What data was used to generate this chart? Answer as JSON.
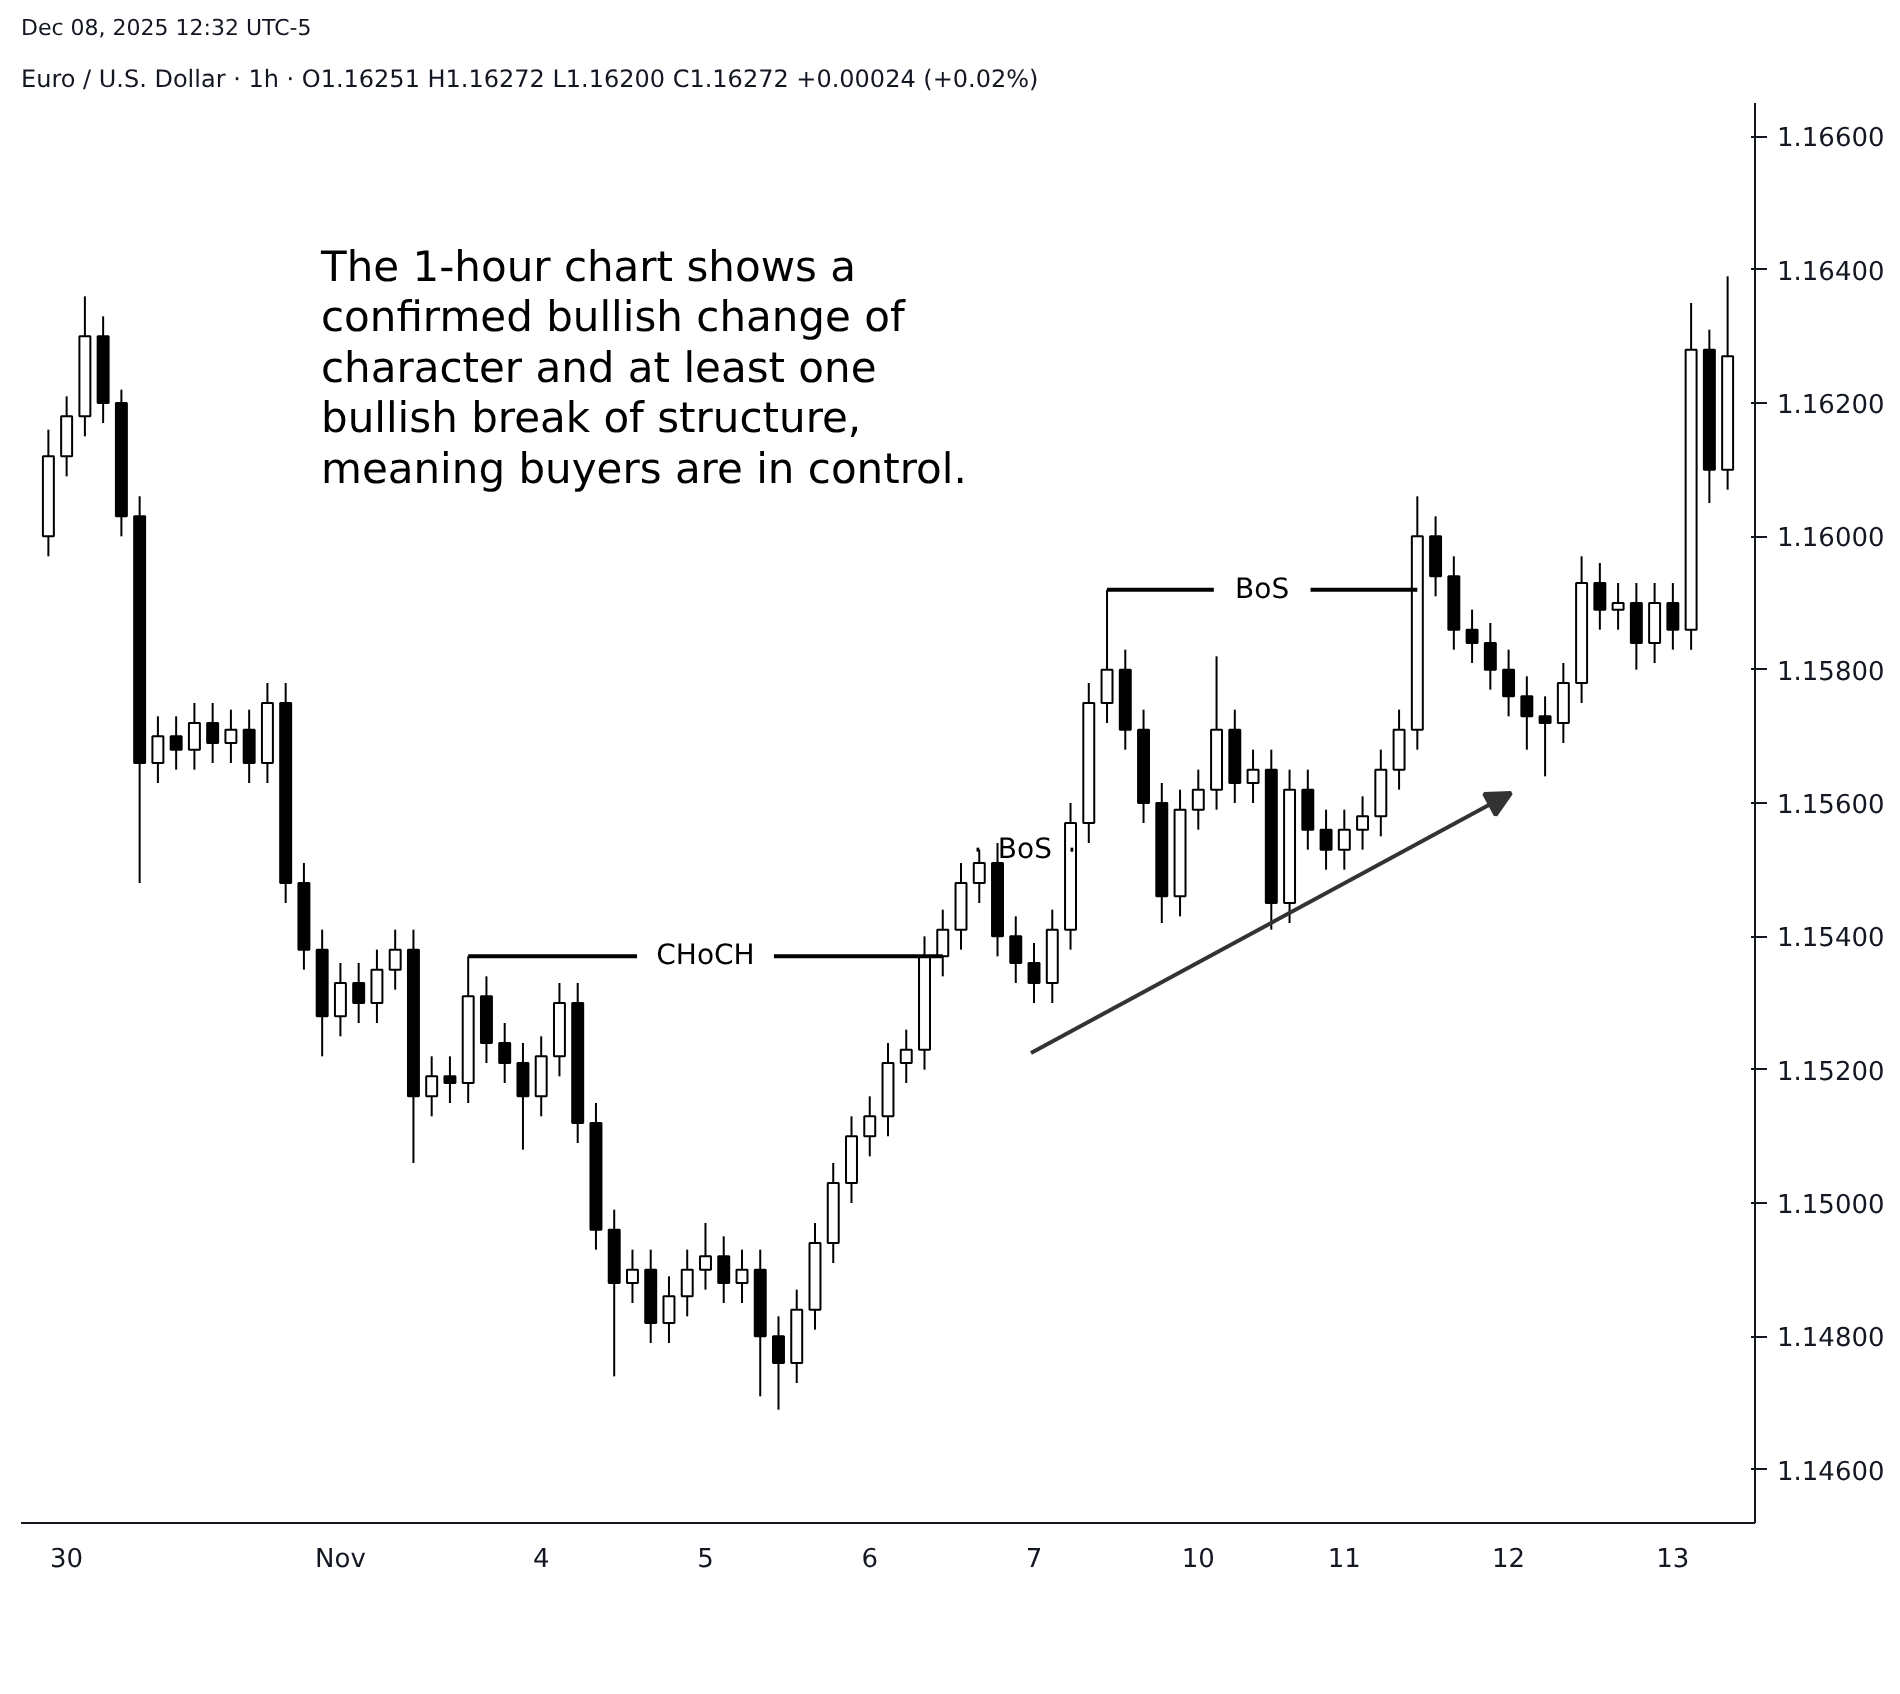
{
  "chart_data": {
    "type": "candlestick",
    "subtitle": "Dec 08, 2025 12:32 UTC-5",
    "title": "Euro / U.S. Dollar · 1h · O1.16251 H1.16272 L1.16200 C1.16272 +0.00024 (+0.02%)",
    "categories": [
      null,
      "30",
      null,
      null,
      null,
      null,
      null,
      null,
      null,
      null,
      null,
      null,
      null,
      null,
      null,
      null,
      "Nov",
      null,
      null,
      null,
      null,
      null,
      null,
      null,
      null,
      null,
      null,
      "4",
      null,
      null,
      null,
      null,
      null,
      null,
      null,
      null,
      "5",
      null,
      null,
      null,
      null,
      null,
      null,
      null,
      null,
      "6",
      null,
      null,
      null,
      null,
      null,
      null,
      null,
      null,
      "7",
      null,
      null,
      null,
      null,
      null,
      null,
      null,
      null,
      "10",
      null,
      null,
      null,
      null,
      null,
      null,
      null,
      "11",
      null,
      null,
      null,
      null,
      null,
      null,
      null,
      null,
      "12",
      null,
      null,
      null,
      null,
      null,
      null,
      null,
      null,
      "13",
      null,
      null,
      null
    ],
    "ohlc": [
      [
        1.16,
        1.1616,
        1.1597,
        1.1612
      ],
      [
        1.1612,
        1.1621,
        1.1609,
        1.1618
      ],
      [
        1.1618,
        1.1636,
        1.1615,
        1.163
      ],
      [
        1.163,
        1.1633,
        1.1617,
        1.162
      ],
      [
        1.162,
        1.1622,
        1.16,
        1.1603
      ],
      [
        1.1603,
        1.1606,
        1.1548,
        1.1566
      ],
      [
        1.1566,
        1.1573,
        1.1563,
        1.157
      ],
      [
        1.157,
        1.1573,
        1.1565,
        1.1568
      ],
      [
        1.1568,
        1.1575,
        1.1565,
        1.1572
      ],
      [
        1.1572,
        1.1575,
        1.1566,
        1.1569
      ],
      [
        1.1569,
        1.1574,
        1.1566,
        1.1571
      ],
      [
        1.1571,
        1.1574,
        1.1563,
        1.1566
      ],
      [
        1.1566,
        1.1578,
        1.1563,
        1.1575
      ],
      [
        1.1575,
        1.1578,
        1.1545,
        1.1548
      ],
      [
        1.1548,
        1.1551,
        1.1535,
        1.1538
      ],
      [
        1.1538,
        1.1541,
        1.1522,
        1.1528
      ],
      [
        1.1528,
        1.1536,
        1.1525,
        1.1533
      ],
      [
        1.1533,
        1.1536,
        1.1527,
        1.153
      ],
      [
        1.153,
        1.1538,
        1.1527,
        1.1535
      ],
      [
        1.1535,
        1.1541,
        1.1532,
        1.1538
      ],
      [
        1.1538,
        1.1541,
        1.1506,
        1.1516
      ],
      [
        1.1516,
        1.1522,
        1.1513,
        1.1519
      ],
      [
        1.1519,
        1.1522,
        1.1515,
        1.1518
      ],
      [
        1.1518,
        1.1537,
        1.1515,
        1.1531
      ],
      [
        1.1531,
        1.1534,
        1.1521,
        1.1524
      ],
      [
        1.1524,
        1.1527,
        1.1518,
        1.1521
      ],
      [
        1.1521,
        1.1524,
        1.1508,
        1.1516
      ],
      [
        1.1516,
        1.1525,
        1.1513,
        1.1522
      ],
      [
        1.1522,
        1.1533,
        1.1519,
        1.153
      ],
      [
        1.153,
        1.1533,
        1.1509,
        1.1512
      ],
      [
        1.1512,
        1.1515,
        1.1493,
        1.1496
      ],
      [
        1.1496,
        1.1499,
        1.1474,
        1.1488
      ],
      [
        1.1488,
        1.1493,
        1.1485,
        1.149
      ],
      [
        1.149,
        1.1493,
        1.1479,
        1.1482
      ],
      [
        1.1482,
        1.1489,
        1.1479,
        1.1486
      ],
      [
        1.1486,
        1.1493,
        1.1483,
        1.149
      ],
      [
        1.149,
        1.1497,
        1.1487,
        1.1492
      ],
      [
        1.1492,
        1.1495,
        1.1485,
        1.1488
      ],
      [
        1.1488,
        1.1493,
        1.1485,
        1.149
      ],
      [
        1.149,
        1.1493,
        1.1471,
        1.148
      ],
      [
        1.148,
        1.1483,
        1.1469,
        1.1476
      ],
      [
        1.1476,
        1.1487,
        1.1473,
        1.1484
      ],
      [
        1.1484,
        1.1497,
        1.1481,
        1.1494
      ],
      [
        1.1494,
        1.1506,
        1.1491,
        1.1503
      ],
      [
        1.1503,
        1.1513,
        1.15,
        1.151
      ],
      [
        1.151,
        1.1516,
        1.1507,
        1.1513
      ],
      [
        1.1513,
        1.1524,
        1.151,
        1.1521
      ],
      [
        1.1521,
        1.1526,
        1.1518,
        1.1523
      ],
      [
        1.1523,
        1.154,
        1.152,
        1.1537
      ],
      [
        1.1537,
        1.1544,
        1.1534,
        1.1541
      ],
      [
        1.1541,
        1.1551,
        1.1538,
        1.1548
      ],
      [
        1.1548,
        1.1553,
        1.1545,
        1.1551
      ],
      [
        1.1551,
        1.1554,
        1.1537,
        1.154
      ],
      [
        1.154,
        1.1543,
        1.1533,
        1.1536
      ],
      [
        1.1536,
        1.1539,
        1.153,
        1.1533
      ],
      [
        1.1533,
        1.1544,
        1.153,
        1.1541
      ],
      [
        1.1541,
        1.156,
        1.1538,
        1.1557
      ],
      [
        1.1557,
        1.1578,
        1.1554,
        1.1575
      ],
      [
        1.1575,
        1.1592,
        1.1572,
        1.158
      ],
      [
        1.158,
        1.1583,
        1.1568,
        1.1571
      ],
      [
        1.1571,
        1.1574,
        1.1557,
        1.156
      ],
      [
        1.156,
        1.1563,
        1.1542,
        1.1546
      ],
      [
        1.1546,
        1.1562,
        1.1543,
        1.1559
      ],
      [
        1.1559,
        1.1565,
        1.1556,
        1.1562
      ],
      [
        1.1562,
        1.1582,
        1.1559,
        1.1571
      ],
      [
        1.1571,
        1.1574,
        1.156,
        1.1563
      ],
      [
        1.1563,
        1.1568,
        1.156,
        1.1565
      ],
      [
        1.1565,
        1.1568,
        1.1541,
        1.1545
      ],
      [
        1.1545,
        1.1565,
        1.1542,
        1.1562
      ],
      [
        1.1562,
        1.1565,
        1.1553,
        1.1556
      ],
      [
        1.1556,
        1.1559,
        1.155,
        1.1553
      ],
      [
        1.1553,
        1.1559,
        1.155,
        1.1556
      ],
      [
        1.1556,
        1.1561,
        1.1553,
        1.1558
      ],
      [
        1.1558,
        1.1568,
        1.1555,
        1.1565
      ],
      [
        1.1565,
        1.1574,
        1.1562,
        1.1571
      ],
      [
        1.1571,
        1.1606,
        1.1568,
        1.16
      ],
      [
        1.16,
        1.1603,
        1.1591,
        1.1594
      ],
      [
        1.1594,
        1.1597,
        1.1583,
        1.1586
      ],
      [
        1.1586,
        1.1589,
        1.1581,
        1.1584
      ],
      [
        1.1584,
        1.1587,
        1.1577,
        1.158
      ],
      [
        1.158,
        1.1583,
        1.1573,
        1.1576
      ],
      [
        1.1576,
        1.1579,
        1.1568,
        1.1573
      ],
      [
        1.1573,
        1.1576,
        1.1564,
        1.1572
      ],
      [
        1.1572,
        1.1581,
        1.1569,
        1.1578
      ],
      [
        1.1578,
        1.1597,
        1.1575,
        1.1593
      ],
      [
        1.1593,
        1.1596,
        1.1586,
        1.1589
      ],
      [
        1.1589,
        1.1593,
        1.1586,
        1.159
      ],
      [
        1.159,
        1.1593,
        1.158,
        1.1584
      ],
      [
        1.1584,
        1.1593,
        1.1581,
        1.159
      ],
      [
        1.159,
        1.1593,
        1.1583,
        1.1586
      ],
      [
        1.1586,
        1.1635,
        1.1583,
        1.1628
      ],
      [
        1.1628,
        1.1631,
        1.1605,
        1.161
      ],
      [
        1.161,
        1.1639,
        1.1607,
        1.1627
      ]
    ],
    "ylim": [
      1.1452,
      1.1665
    ],
    "yticks": [
      {
        "value": 1.146,
        "label": "1.14600"
      },
      {
        "value": 1.148,
        "label": "1.14800"
      },
      {
        "value": 1.15,
        "label": "1.15000"
      },
      {
        "value": 1.152,
        "label": "1.15200"
      },
      {
        "value": 1.154,
        "label": "1.15400"
      },
      {
        "value": 1.156,
        "label": "1.15600"
      },
      {
        "value": 1.158,
        "label": "1.15800"
      },
      {
        "value": 1.16,
        "label": "1.16000"
      },
      {
        "value": 1.162,
        "label": "1.16200"
      },
      {
        "value": 1.164,
        "label": "1.16400"
      },
      {
        "value": 1.166,
        "label": "1.16600"
      }
    ],
    "grid": false,
    "annotations": [
      "The 1-hour chart shows a\nconfirmed bullish change of\ncharacter and at least one\nbullish break of structure,\nmeaning buyers are in control."
    ],
    "ref_lines": [
      {
        "axis": "y",
        "value": 1.1537,
        "label": "CHoCH"
      },
      {
        "axis": "y",
        "value": 1.1553,
        "label": "BoS"
      },
      {
        "axis": "y",
        "value": 1.1592,
        "label": "BoS"
      }
    ]
  }
}
